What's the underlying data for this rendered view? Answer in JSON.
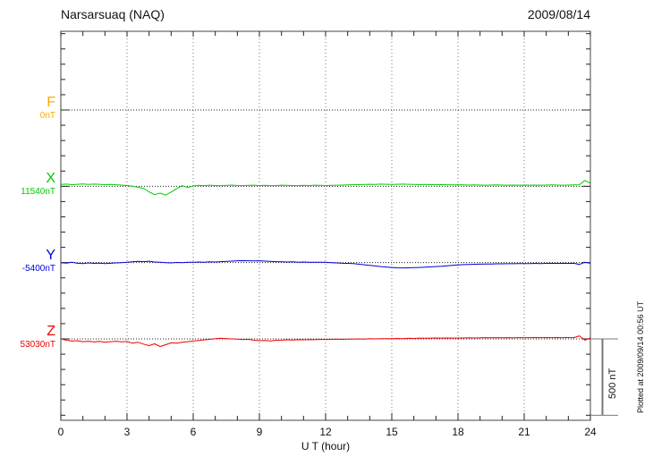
{
  "header": {
    "title": "Narsarsuaq (NAQ)",
    "date": "2009/08/14"
  },
  "chart_data": {
    "type": "line",
    "station": "Narsarsuaq (NAQ)",
    "date": "2009/08/14",
    "xlabel": "U T (hour)",
    "x_range": [
      0,
      24
    ],
    "x_ticks": [
      "0",
      "3",
      "6",
      "9",
      "12",
      "15",
      "18",
      "21",
      "24"
    ],
    "sample_step_hours": 0.25,
    "y_tick_interval_nT": 100,
    "row_spacing_nT": 500,
    "scale_bar_label": "500 nT",
    "plotted_at": "Plotted at 2009/09/14 00:56 UT",
    "grid": "dotted vertical every 3 h, dotted horizontal baseline per component",
    "legend_position": "left margin",
    "series": [
      {
        "label": "F",
        "baseline_label": "0nT",
        "color": "#ffaa00",
        "values": []
      },
      {
        "label": "X",
        "baseline_label": "11540nT",
        "color": "#00cc00",
        "values": [
          12,
          14,
          11,
          13,
          15,
          12,
          14,
          13,
          11,
          12,
          10,
          8,
          5,
          0,
          -6,
          -14,
          -36,
          -55,
          -45,
          -58,
          -38,
          -15,
          4,
          -8,
          2,
          6,
          4,
          7,
          5,
          3,
          6,
          8,
          5,
          4,
          6,
          7,
          5,
          6,
          4,
          5,
          7,
          6,
          5,
          4,
          6,
          5,
          7,
          6,
          5,
          6,
          7,
          8,
          9,
          10,
          11,
          12,
          13,
          12,
          14,
          13,
          12,
          13,
          14,
          13,
          12,
          11,
          12,
          11,
          10,
          11,
          10,
          9,
          10,
          9,
          8,
          9,
          8,
          7,
          8,
          9,
          8,
          7,
          8,
          7,
          8,
          7,
          8,
          7,
          8,
          9,
          8,
          7,
          8,
          9,
          10,
          38,
          20
        ]
      },
      {
        "label": "Y",
        "baseline_label": "-5400nT",
        "color": "#0000dd",
        "values": [
          0,
          -3,
          2,
          -4,
          -6,
          -2,
          -5,
          -3,
          -6,
          -4,
          -2,
          0,
          2,
          5,
          8,
          6,
          9,
          4,
          2,
          0,
          -2,
          1,
          0,
          2,
          3,
          4,
          3,
          5,
          4,
          6,
          8,
          10,
          12,
          13,
          12,
          11,
          12,
          10,
          8,
          6,
          5,
          4,
          5,
          3,
          4,
          3,
          2,
          3,
          2,
          0,
          -2,
          -4,
          -5,
          -6,
          -10,
          -14,
          -18,
          -22,
          -26,
          -29,
          -32,
          -34,
          -35,
          -34,
          -33,
          -32,
          -30,
          -28,
          -26,
          -24,
          -21,
          -18,
          -15,
          -13,
          -12,
          -11,
          -10,
          -9,
          -9,
          -8,
          -8,
          -7,
          -7,
          -6,
          -6,
          -6,
          -5,
          -6,
          -5,
          -4,
          -5,
          -4,
          -5,
          -4,
          -12,
          2,
          -4
        ]
      },
      {
        "label": "Z",
        "baseline_label": "53030nT",
        "color": "#ee0000",
        "values": [
          0,
          -8,
          -14,
          -12,
          -18,
          -15,
          -20,
          -16,
          -22,
          -18,
          -15,
          -19,
          -17,
          -28,
          -22,
          -34,
          -44,
          -32,
          -50,
          -38,
          -26,
          -28,
          -22,
          -18,
          -14,
          -10,
          -6,
          -3,
          2,
          4,
          2,
          0,
          -2,
          -4,
          -3,
          -8,
          -12,
          -10,
          -13,
          -9,
          -8,
          -6,
          -7,
          -5,
          -6,
          -4,
          -5,
          -3,
          -4,
          -3,
          -2,
          -3,
          -1,
          -2,
          0,
          -1,
          1,
          0,
          2,
          1,
          2,
          3,
          2,
          4,
          3,
          5,
          4,
          5,
          6,
          5,
          6,
          5,
          6,
          6,
          7,
          6,
          7,
          8,
          7,
          8,
          7,
          8,
          7,
          8,
          8,
          8,
          9,
          8,
          9,
          8,
          9,
          8,
          9,
          8,
          20,
          -8,
          6
        ]
      }
    ]
  }
}
